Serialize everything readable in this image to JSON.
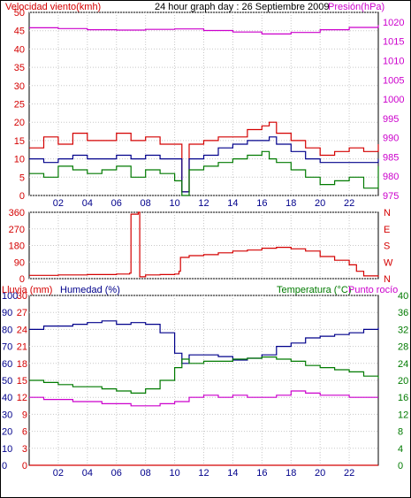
{
  "header": {
    "left_label": "Velocidad viento(kmh)",
    "title": "24 hour graph day : 26 Septiembre 2009",
    "right_label": "Presión(hPa)"
  },
  "colors": {
    "wind": "#d40000",
    "gust": "#d40000",
    "wind_avg": "#00008b",
    "green": "#007a00",
    "pressure": "#cc00cc",
    "rain": "#d40000",
    "humidity": "#00008b",
    "temperature": "#007a00",
    "dewpoint": "#cc00cc",
    "grid": "#c8c8c8",
    "axis": "#000000"
  },
  "x_ticks": [
    "02",
    "04",
    "06",
    "08",
    "10",
    "12",
    "14",
    "16",
    "18",
    "20",
    "22"
  ],
  "chart_data": [
    {
      "type": "line",
      "name": "wind",
      "x_range": [
        0,
        24
      ],
      "y_left": {
        "label": "Velocidad viento(kmh)",
        "ticks": [
          0,
          5,
          10,
          15,
          20,
          25,
          30,
          35,
          40,
          45,
          50
        ],
        "range": [
          0,
          50
        ]
      },
      "y_right": {
        "label": "Presión(hPa)",
        "ticks": [
          975,
          980,
          985,
          990,
          995,
          1000,
          1005,
          1010,
          1015,
          1020
        ],
        "range": [
          975,
          1022.5
        ]
      },
      "series": [
        {
          "key": "gust",
          "axis": "left",
          "x": [
            0,
            1,
            2,
            3,
            4,
            5,
            6,
            7,
            8,
            9,
            10,
            10.5,
            11,
            12,
            13,
            14,
            15,
            16,
            16.5,
            17,
            18,
            19,
            20,
            21,
            22,
            23,
            24
          ],
          "y": [
            13,
            16,
            14,
            17,
            15,
            15,
            17,
            15,
            16,
            14,
            14,
            1,
            14,
            15,
            16,
            16,
            18,
            19,
            20,
            17,
            15,
            13,
            11,
            12,
            13,
            12,
            14
          ]
        },
        {
          "key": "wind_avg",
          "axis": "left",
          "x": [
            0,
            1,
            2,
            3,
            4,
            5,
            6,
            7,
            8,
            9,
            10,
            10.5,
            11,
            12,
            13,
            14,
            15,
            16,
            16.5,
            17,
            18,
            19,
            20,
            21,
            22,
            23,
            24
          ],
          "y": [
            10,
            9,
            10,
            11,
            10,
            10,
            11,
            10,
            11,
            10,
            10,
            1,
            10,
            11,
            13,
            14,
            15,
            15,
            16,
            14,
            12,
            10,
            9,
            9,
            9,
            9,
            10
          ]
        },
        {
          "key": "green",
          "axis": "left",
          "x": [
            0,
            1,
            2,
            3,
            4,
            5,
            6,
            7,
            8,
            9,
            10,
            10.5,
            11,
            12,
            13,
            14,
            15,
            16,
            16.5,
            17,
            18,
            19,
            20,
            21,
            22,
            23,
            24
          ],
          "y": [
            6,
            5,
            8,
            7,
            6,
            7,
            8,
            5,
            7,
            6,
            4,
            0,
            7,
            8,
            9,
            10,
            11,
            12,
            10,
            9,
            7,
            5,
            3,
            4,
            5,
            2,
            8
          ]
        },
        {
          "key": "pressure",
          "axis": "right",
          "x": [
            0,
            2,
            4,
            6,
            8,
            10,
            12,
            14,
            16,
            18,
            20,
            22,
            24
          ],
          "y": [
            1018.5,
            1018.3,
            1018.0,
            1017.9,
            1018.1,
            1018.2,
            1017.8,
            1017.4,
            1016.9,
            1017.3,
            1018.0,
            1018.6,
            1019.2
          ]
        }
      ]
    },
    {
      "type": "line",
      "name": "wind_direction",
      "x_range": [
        0,
        24
      ],
      "y_left": {
        "ticks": [
          0,
          90,
          180,
          270,
          360
        ],
        "range": [
          0,
          360
        ]
      },
      "y_right": {
        "ticks": [
          "N",
          "E",
          "S",
          "W",
          "N"
        ]
      },
      "series": [
        {
          "key": "direction",
          "x": [
            0,
            2,
            4,
            6,
            6.9,
            7.0,
            7.5,
            7.6,
            8,
            9,
            10,
            10.3,
            10.4,
            11,
            12,
            13,
            14,
            15,
            16,
            17,
            18,
            19,
            20,
            21,
            22,
            22.5,
            23,
            24
          ],
          "y": [
            18,
            20,
            22,
            25,
            30,
            350,
            360,
            10,
            20,
            22,
            25,
            40,
            115,
            125,
            130,
            140,
            150,
            155,
            165,
            170,
            162,
            150,
            120,
            100,
            75,
            40,
            15,
            10
          ]
        }
      ]
    },
    {
      "type": "line",
      "name": "weather",
      "x_range": [
        0,
        24
      ],
      "left_labels": {
        "rain": "Lluvia (mm)",
        "humidity": "Humedad (%)"
      },
      "right_labels": {
        "temperature": "Temperatura (°C)",
        "dewpoint": "Punto rocío"
      },
      "y_rain_ticks": [
        0,
        3,
        6,
        9,
        12,
        15,
        18,
        21,
        24,
        27,
        30
      ],
      "y_humidity_ticks": [
        0,
        10,
        20,
        30,
        40,
        50,
        60,
        70,
        80,
        90,
        100
      ],
      "y_temperature_ticks": [
        0,
        4,
        8,
        12,
        16,
        20,
        24,
        28,
        32,
        36,
        40
      ],
      "y_rain_range": [
        0,
        30
      ],
      "y_humidity_range": [
        0,
        100
      ],
      "y_temperature_range": [
        0,
        40
      ],
      "series": [
        {
          "key": "rain",
          "axis": "rain",
          "x": [
            0,
            24
          ],
          "y": [
            0,
            0
          ]
        },
        {
          "key": "humidity",
          "axis": "humidity",
          "x": [
            0,
            1,
            2,
            3,
            4,
            5,
            6,
            7,
            8,
            9,
            10,
            10.5,
            11,
            12,
            13,
            14,
            15,
            16,
            17,
            18,
            19,
            20,
            21,
            22,
            23,
            24
          ],
          "y": [
            80,
            82,
            82,
            83,
            84,
            85,
            83,
            84,
            83,
            78,
            66,
            60,
            65,
            65,
            64,
            62,
            63,
            65,
            70,
            72,
            75,
            76,
            77,
            78,
            80,
            81
          ]
        },
        {
          "key": "temperature",
          "axis": "temperature",
          "x": [
            0,
            1,
            2,
            3,
            4,
            5,
            6,
            7,
            8,
            9,
            10,
            10.5,
            11,
            12,
            13,
            14,
            15,
            16,
            17,
            18,
            19,
            20,
            21,
            22,
            23,
            24
          ],
          "y": [
            20,
            19.5,
            19,
            18.5,
            18.5,
            18,
            17.5,
            17,
            18,
            20,
            23,
            25,
            24,
            24.5,
            24.5,
            25,
            25.2,
            25.5,
            25,
            24.5,
            23.5,
            23,
            22.5,
            22,
            21,
            20.5
          ]
        },
        {
          "key": "dewpoint",
          "axis": "temperature",
          "x": [
            0,
            1,
            2,
            3,
            4,
            5,
            6,
            7,
            8,
            9,
            10,
            11,
            12,
            13,
            14,
            15,
            16,
            17,
            18,
            19,
            20,
            21,
            22,
            23,
            24
          ],
          "y": [
            16,
            15.5,
            15.5,
            15,
            15,
            14.5,
            14.5,
            14,
            14,
            14.5,
            15,
            16,
            16.5,
            16,
            16.5,
            16,
            16,
            16.5,
            17.5,
            17,
            16.5,
            16.5,
            16,
            16,
            16
          ]
        }
      ]
    }
  ]
}
